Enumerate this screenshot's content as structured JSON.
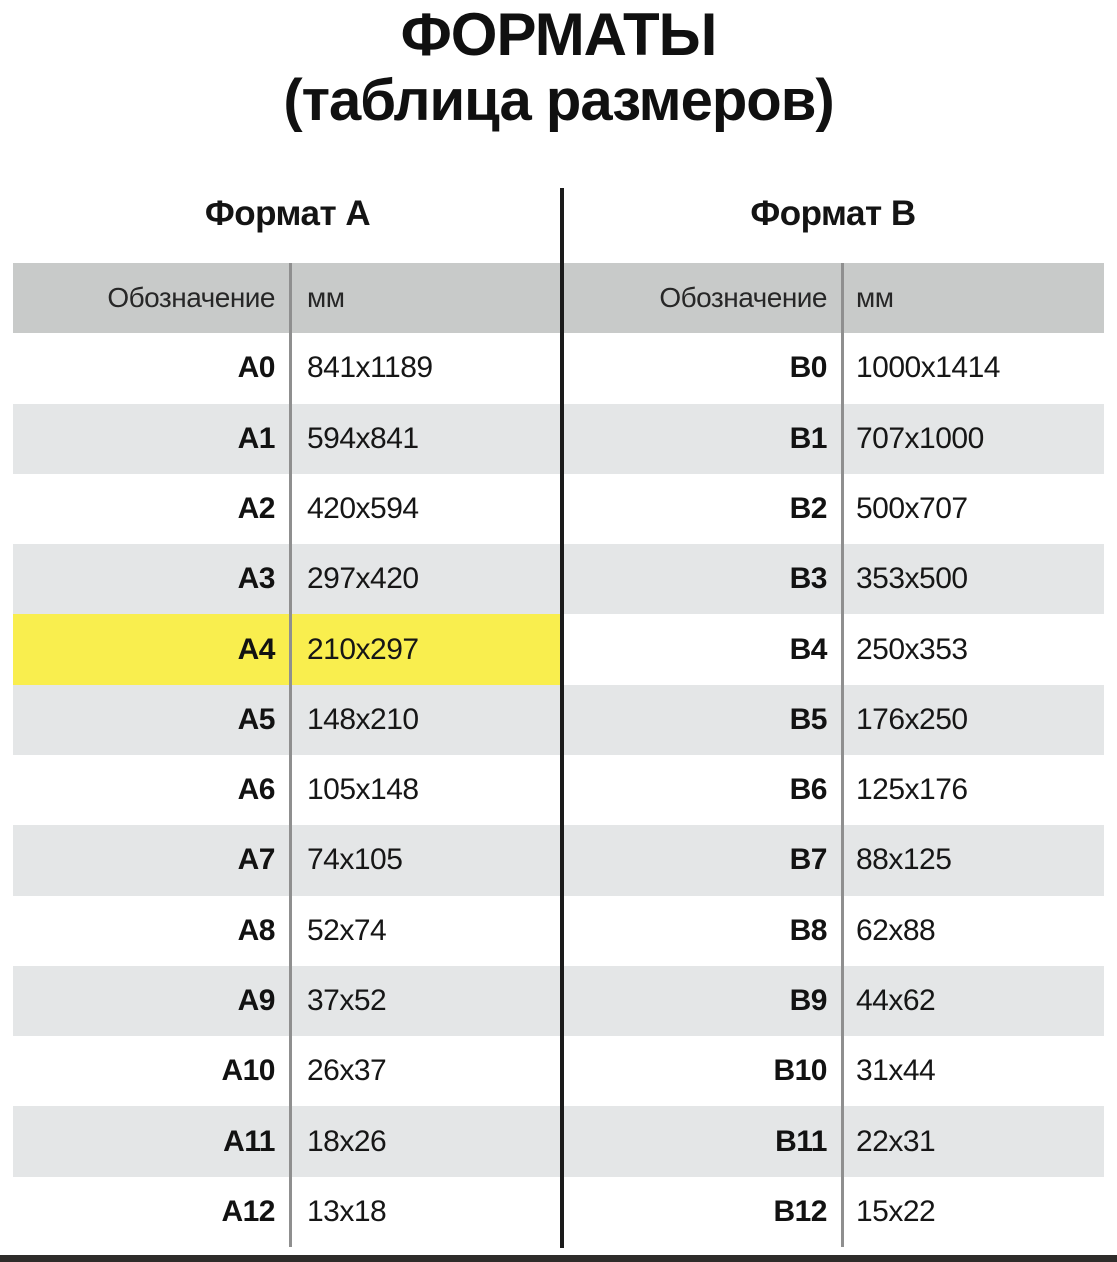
{
  "title": "ФОРМАТЫ",
  "subtitle": "(таблица размеров)",
  "tables": [
    {
      "heading": "Формат А",
      "columns": {
        "designation": "Обозначение",
        "mm": "мм"
      },
      "rows": [
        {
          "designation": "A0",
          "size": "841x1189"
        },
        {
          "designation": "A1",
          "size": "594x841"
        },
        {
          "designation": "A2",
          "size": "420x594"
        },
        {
          "designation": "A3",
          "size": "297x420"
        },
        {
          "designation": "A4",
          "size": "210x297",
          "highlight": true
        },
        {
          "designation": "A5",
          "size": "148x210"
        },
        {
          "designation": "A6",
          "size": "105x148"
        },
        {
          "designation": "A7",
          "size": "74x105"
        },
        {
          "designation": "A8",
          "size": "52x74"
        },
        {
          "designation": "A9",
          "size": "37x52"
        },
        {
          "designation": "A10",
          "size": "26x37"
        },
        {
          "designation": "A11",
          "size": "18x26"
        },
        {
          "designation": "A12",
          "size": "13x18"
        }
      ]
    },
    {
      "heading": "Формат В",
      "columns": {
        "designation": "Обозначение",
        "mm": "мм"
      },
      "rows": [
        {
          "designation": "B0",
          "size": "1000x1414"
        },
        {
          "designation": "B1",
          "size": "707x1000"
        },
        {
          "designation": "B2",
          "size": "500x707"
        },
        {
          "designation": "B3",
          "size": "353x500"
        },
        {
          "designation": "B4",
          "size": "250x353"
        },
        {
          "designation": "B5",
          "size": "176x250"
        },
        {
          "designation": "B6",
          "size": "125x176"
        },
        {
          "designation": "B7",
          "size": "88x125"
        },
        {
          "designation": "B8",
          "size": "62x88"
        },
        {
          "designation": "B9",
          "size": "44x62"
        },
        {
          "designation": "B10",
          "size": "31x44"
        },
        {
          "designation": "B11",
          "size": "22x31"
        },
        {
          "designation": "B12",
          "size": "15x22"
        }
      ]
    }
  ],
  "colors": {
    "header_bg": "#c8cac9",
    "row_alt_bg": "#e4e6e7",
    "highlight_bg": "#f9ee4e",
    "divider_gray": "#8f8f8f",
    "divider_black": "#1b1b1b"
  }
}
